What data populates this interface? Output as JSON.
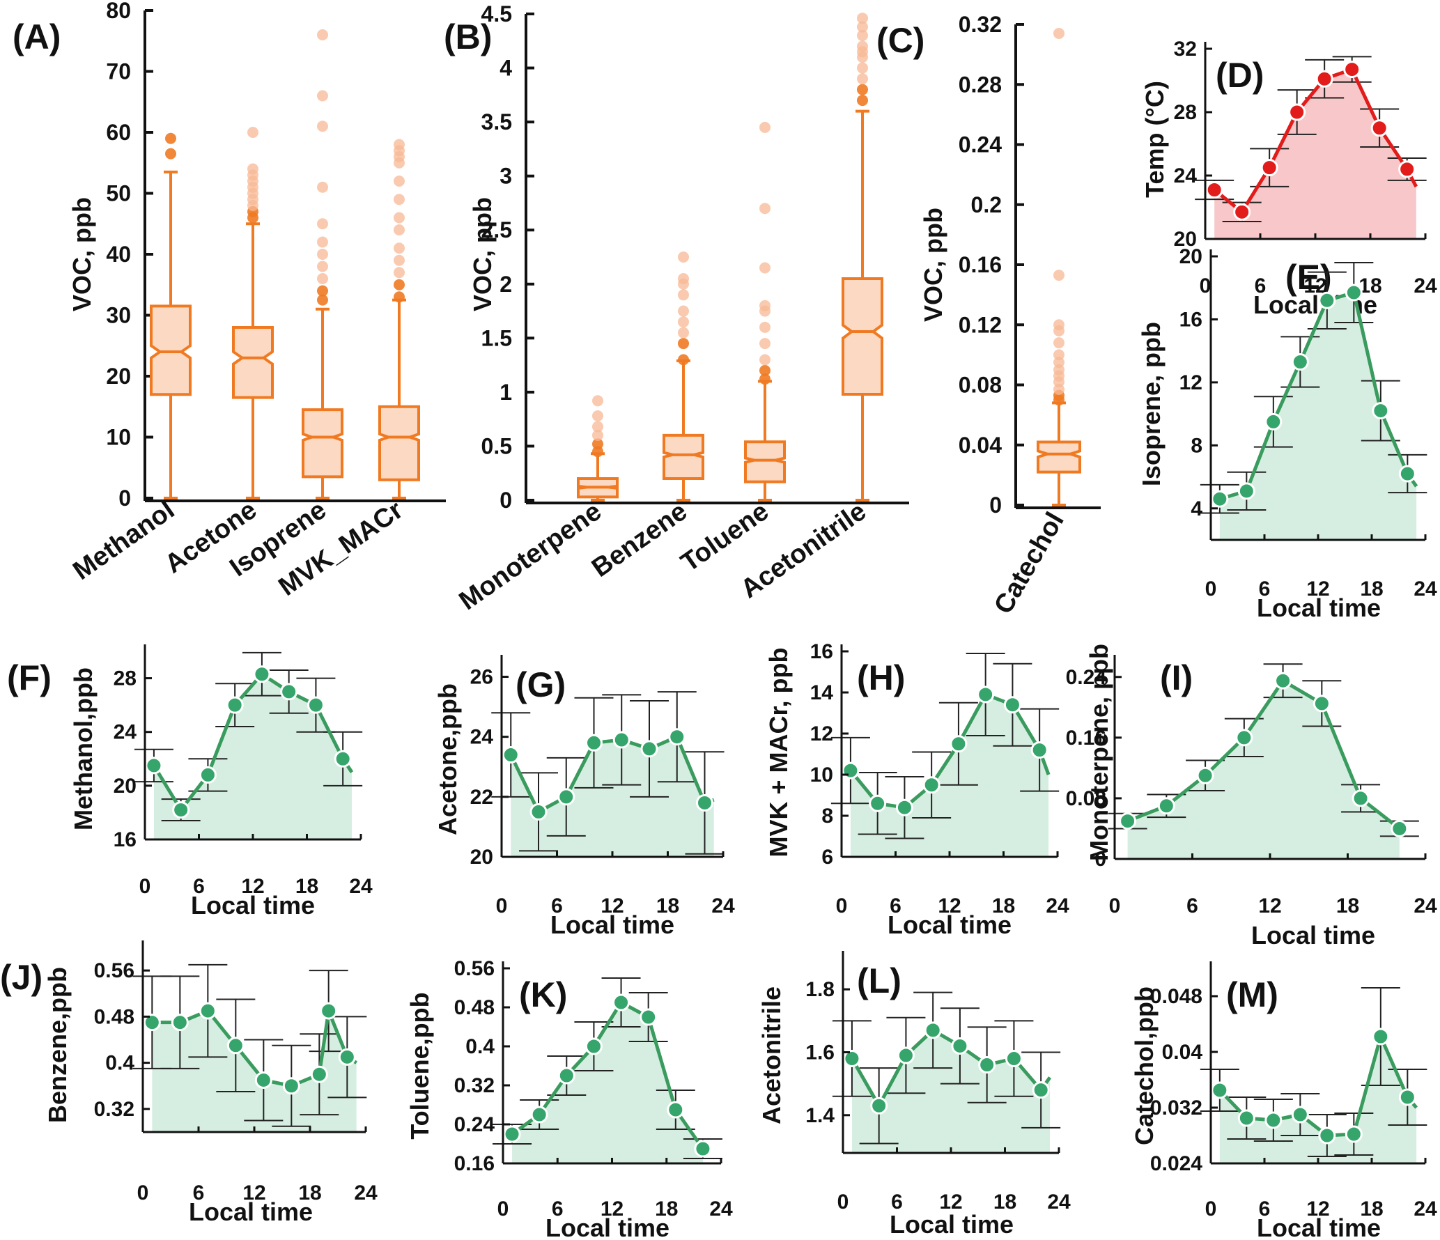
{
  "colors": {
    "box": "#F07A22",
    "box_fill": "#FBD9C2",
    "outlier": "#F7B894",
    "line_green": "#3A9B5E",
    "area_green": "#D6EEE1",
    "marker_green": "#35A56C",
    "line_red": "#E21B1B",
    "area_red": "#F8C7C9",
    "axis": "#111111",
    "errbar": "#222222"
  },
  "chart_data": [
    {
      "id": "A",
      "type": "box",
      "panel_label": "(A)",
      "ylabel": "VOC, ppb",
      "ylim": [
        0,
        80
      ],
      "yticks": [
        0,
        10,
        20,
        30,
        40,
        50,
        60,
        70,
        80
      ],
      "categories": [
        "Methanol",
        "Acetone",
        "Isoprene",
        "MVK_MACr"
      ],
      "boxes": [
        {
          "whisker_low": 0,
          "q1": 17,
          "median": 24,
          "q3": 31.5,
          "whisker_high": 53.5,
          "notch": [
            23,
            25
          ],
          "outliers": [
            56.5,
            59
          ]
        },
        {
          "whisker_low": 0,
          "q1": 16.5,
          "median": 23,
          "q3": 28,
          "whisker_high": 45,
          "notch": [
            22,
            24
          ],
          "outliers": [
            46,
            47,
            48,
            49,
            50,
            51,
            52,
            53,
            54,
            60
          ]
        },
        {
          "whisker_low": 0,
          "q1": 3.5,
          "median": 10,
          "q3": 14.5,
          "whisker_high": 31,
          "notch": [
            9.5,
            10.5
          ],
          "outliers": [
            32.5,
            34,
            36,
            38,
            40,
            42,
            45,
            51,
            61,
            66,
            76
          ]
        },
        {
          "whisker_low": 0,
          "q1": 3,
          "median": 10,
          "q3": 15,
          "whisker_high": 32.5,
          "notch": [
            9.5,
            10.5
          ],
          "outliers": [
            33,
            35,
            37,
            39,
            41,
            44,
            46,
            49,
            52,
            55,
            56,
            57,
            58
          ]
        }
      ]
    },
    {
      "id": "B",
      "type": "box",
      "panel_label": "(B)",
      "ylabel": "VOC, ppb",
      "ylim": [
        0,
        4.5
      ],
      "yticks": [
        0,
        0.5,
        1,
        1.5,
        2,
        2.5,
        3,
        3.5,
        4,
        4.5
      ],
      "ytick_labels": [
        "0",
        "0.5",
        "1",
        "1.5",
        "2",
        "2.5",
        "3",
        "3.5",
        "4",
        "4.5"
      ],
      "categories": [
        "Monoterpene",
        "Benzene",
        "Toluene",
        "Acetonitrile"
      ],
      "boxes": [
        {
          "whisker_low": 0,
          "q1": 0.03,
          "median": 0.12,
          "q3": 0.2,
          "whisker_high": 0.43,
          "notch": [
            0.11,
            0.13
          ],
          "outliers": [
            0.45,
            0.52,
            0.6,
            0.68,
            0.78,
            0.92
          ]
        },
        {
          "whisker_low": 0,
          "q1": 0.2,
          "median": 0.42,
          "q3": 0.6,
          "whisker_high": 1.29,
          "notch": [
            0.4,
            0.44
          ],
          "outliers": [
            1.3,
            1.45,
            1.55,
            1.65,
            1.75,
            1.9,
            2.0,
            2.05,
            2.25
          ]
        },
        {
          "whisker_low": 0,
          "q1": 0.17,
          "median": 0.37,
          "q3": 0.54,
          "whisker_high": 1.1,
          "notch": [
            0.35,
            0.39
          ],
          "outliers": [
            1.12,
            1.2,
            1.3,
            1.45,
            1.6,
            1.75,
            1.8,
            2.15,
            2.7,
            3.45
          ]
        },
        {
          "whisker_low": 0,
          "q1": 0.98,
          "median": 1.56,
          "q3": 2.05,
          "whisker_high": 3.6,
          "notch": [
            1.5,
            1.62
          ],
          "outliers": [
            3.7,
            3.8,
            3.9,
            4.0,
            4.1,
            4.15,
            4.2,
            4.3,
            4.38,
            4.46
          ]
        }
      ]
    },
    {
      "id": "C",
      "type": "box",
      "panel_label": "(C)",
      "ylabel": "VOC, ppb",
      "ylim": [
        0,
        0.32
      ],
      "yticks": [
        0,
        0.04,
        0.08,
        0.12,
        0.16,
        0.2,
        0.24,
        0.28,
        0.32
      ],
      "ytick_labels": [
        "0",
        "0.04",
        "0.08",
        "0.12",
        "0.16",
        "0.2",
        "0.24",
        "0.28",
        "0.32"
      ],
      "categories": [
        "Catechol"
      ],
      "boxes": [
        {
          "whisker_low": 0,
          "q1": 0.022,
          "median": 0.034,
          "q3": 0.042,
          "whisker_high": 0.068,
          "notch": [
            0.032,
            0.036
          ],
          "outliers": [
            0.07,
            0.073,
            0.077,
            0.082,
            0.086,
            0.09,
            0.095,
            0.1,
            0.108,
            0.116,
            0.12,
            0.153,
            0.314
          ]
        }
      ]
    },
    {
      "id": "D",
      "type": "area",
      "panel_label": "(D)",
      "ylabel": "Temp (°C)",
      "xlabel": "Local time",
      "xlim": [
        0,
        24
      ],
      "xticks": [
        0,
        6,
        12,
        18,
        24
      ],
      "ylim": [
        20,
        32
      ],
      "yticks": [
        20,
        24,
        28,
        32
      ],
      "x": [
        1,
        4,
        7,
        10,
        13,
        16,
        19,
        22
      ],
      "y": [
        23.1,
        21.7,
        24.5,
        28.0,
        30.1,
        30.7,
        27.0,
        24.4
      ],
      "err": [
        0.6,
        0.6,
        1.2,
        1.4,
        1.2,
        0.8,
        1.2,
        0.7
      ],
      "line_end": [
        23,
        23.3
      ]
    },
    {
      "id": "E",
      "type": "area",
      "panel_label": "(E)",
      "ylabel": "Isoprene, ppb",
      "xlabel": "Local time",
      "xlim": [
        0,
        24
      ],
      "xticks": [
        0,
        6,
        12,
        18,
        24
      ],
      "ylim": [
        2,
        20
      ],
      "yticks": [
        4,
        8,
        12,
        16,
        20
      ],
      "x": [
        1,
        4,
        7,
        10,
        13,
        16,
        19,
        22
      ],
      "y": [
        4.6,
        5.1,
        9.5,
        13.3,
        17.2,
        17.7,
        10.2,
        6.2
      ],
      "err": [
        0.9,
        1.2,
        1.6,
        1.6,
        1.8,
        1.9,
        1.9,
        1.2
      ],
      "line_end": [
        23,
        5.4
      ]
    },
    {
      "id": "F",
      "type": "area",
      "panel_label": "(F)",
      "ylabel": "Methanol,ppb",
      "xlabel": "Local time",
      "xlim": [
        0,
        24
      ],
      "xticks": [
        0,
        6,
        12,
        18,
        24
      ],
      "ylim": [
        16,
        30
      ],
      "yticks": [
        16,
        20,
        24,
        28
      ],
      "x": [
        1,
        4,
        7,
        10,
        13,
        16,
        19,
        22
      ],
      "y": [
        21.5,
        18.2,
        20.8,
        26.0,
        28.3,
        27.0,
        26.0,
        22.0
      ],
      "err": [
        1.2,
        0.8,
        1.2,
        1.6,
        1.6,
        1.6,
        2.0,
        2.0
      ],
      "line_end": [
        23,
        21.0
      ]
    },
    {
      "id": "G",
      "type": "area",
      "panel_label": "(G)",
      "ylabel": "Acetone,ppb",
      "xlabel": "Local time",
      "xlim": [
        0,
        24
      ],
      "xticks": [
        0,
        6,
        12,
        18,
        24
      ],
      "ylim": [
        20,
        26.5
      ],
      "yticks": [
        20,
        22,
        24,
        26
      ],
      "x": [
        1,
        4,
        7,
        10,
        13,
        16,
        19,
        22
      ],
      "y": [
        23.4,
        21.5,
        22.0,
        23.8,
        23.9,
        23.6,
        24.0,
        21.8
      ],
      "err": [
        1.4,
        1.3,
        1.3,
        1.5,
        1.5,
        1.6,
        1.5,
        1.7
      ],
      "line_end": [
        23,
        21.9
      ]
    },
    {
      "id": "H",
      "type": "area",
      "panel_label": "(H)",
      "ylabel": "MVK + MACr, ppb",
      "xlabel": "Local time",
      "xlim": [
        0,
        24
      ],
      "xticks": [
        0,
        6,
        12,
        18,
        24
      ],
      "ylim": [
        6,
        16
      ],
      "yticks": [
        6,
        8,
        10,
        12,
        14,
        16
      ],
      "x": [
        1,
        4,
        7,
        10,
        13,
        16,
        19,
        22
      ],
      "y": [
        10.2,
        8.6,
        8.4,
        9.5,
        11.5,
        13.9,
        13.4,
        11.2
      ],
      "err": [
        1.6,
        1.5,
        1.5,
        1.6,
        2.0,
        2.0,
        2.0,
        2.0
      ],
      "line_end": [
        23,
        10.0
      ]
    },
    {
      "id": "I",
      "type": "area",
      "panel_label": "(I)",
      "ylabel": "Monoterpene, ppb",
      "xlabel": "Local time",
      "xlim": [
        0,
        24
      ],
      "xticks": [
        0,
        6,
        12,
        18,
        24
      ],
      "ylim": [
        0,
        0.26
      ],
      "yticks": [
        0,
        0.08,
        0.16,
        0.24
      ],
      "ytick_labels": [
        "0",
        "0.08",
        "0.16",
        "0.24"
      ],
      "x": [
        1,
        4,
        7,
        10,
        13,
        16,
        19,
        22
      ],
      "y": [
        0.05,
        0.07,
        0.11,
        0.16,
        0.235,
        0.205,
        0.08,
        0.04
      ],
      "err": [
        0.01,
        0.015,
        0.02,
        0.025,
        0.022,
        0.03,
        0.018,
        0.01
      ],
      "line_end": [
        22,
        0.04
      ]
    },
    {
      "id": "J",
      "type": "area",
      "panel_label": "(J)",
      "ylabel": "Benzene,ppb",
      "xlabel": "Local time",
      "xlim": [
        0,
        24
      ],
      "xticks": [
        0,
        6,
        12,
        18,
        24
      ],
      "ylim": [
        0.28,
        0.6
      ],
      "yticks": [
        0.32,
        0.4,
        0.48,
        0.56
      ],
      "ytick_labels": [
        "0.32",
        "0.4",
        "0.48",
        "0.56"
      ],
      "x": [
        1,
        4,
        7,
        10,
        13,
        16,
        19,
        20,
        22
      ],
      "y": [
        0.47,
        0.47,
        0.49,
        0.43,
        0.37,
        0.36,
        0.38,
        0.49,
        0.41
      ],
      "err": [
        0.08,
        0.08,
        0.08,
        0.08,
        0.07,
        0.07,
        0.07,
        0.07,
        0.07
      ],
      "line_end": [
        23,
        0.4
      ]
    },
    {
      "id": "K",
      "type": "area",
      "panel_label": "(K)",
      "ylabel": "Toluene,ppb",
      "xlabel": "Local time",
      "xlim": [
        0,
        24
      ],
      "xticks": [
        0,
        6,
        12,
        18,
        24
      ],
      "ylim": [
        0.16,
        0.56
      ],
      "yticks": [
        0.16,
        0.24,
        0.32,
        0.4,
        0.48,
        0.56
      ],
      "ytick_labels": [
        "0.16",
        "0.24",
        "0.32",
        "0.4",
        "0.48",
        "0.56"
      ],
      "x": [
        1,
        4,
        7,
        10,
        13,
        16,
        19,
        22
      ],
      "y": [
        0.22,
        0.26,
        0.34,
        0.4,
        0.49,
        0.46,
        0.27,
        0.19
      ],
      "err": [
        0.02,
        0.03,
        0.04,
        0.05,
        0.05,
        0.05,
        0.04,
        0.02
      ],
      "line_end": [
        22,
        0.19
      ]
    },
    {
      "id": "L",
      "type": "area",
      "panel_label": "(L)",
      "ylabel": "Acetonitrile",
      "xlabel": "Local time",
      "xlim": [
        0,
        24
      ],
      "xticks": [
        0,
        6,
        12,
        18,
        24
      ],
      "ylim": [
        1.28,
        1.9
      ],
      "yticks": [
        1.4,
        1.6,
        1.8
      ],
      "ytick_labels": [
        "1.4",
        "1.6",
        "1.8"
      ],
      "x": [
        1,
        4,
        7,
        10,
        13,
        16,
        19,
        22
      ],
      "y": [
        1.58,
        1.43,
        1.59,
        1.67,
        1.62,
        1.56,
        1.58,
        1.48
      ],
      "err": [
        0.12,
        0.12,
        0.12,
        0.12,
        0.12,
        0.12,
        0.12,
        0.12
      ],
      "line_end": [
        23,
        1.52
      ]
    },
    {
      "id": "M",
      "type": "area",
      "panel_label": "(M)",
      "ylabel": "Catechol,ppb",
      "xlabel": "Local time",
      "xlim": [
        0,
        24
      ],
      "xticks": [
        0,
        6,
        12,
        18,
        24
      ],
      "ylim": [
        0.024,
        0.052
      ],
      "yticks": [
        0.024,
        0.032,
        0.04,
        0.048
      ],
      "ytick_labels": [
        "0.024",
        "0.032",
        "0.04",
        "0.048"
      ],
      "x": [
        1,
        4,
        7,
        10,
        13,
        16,
        19,
        22
      ],
      "y": [
        0.0345,
        0.0305,
        0.0302,
        0.031,
        0.028,
        0.0282,
        0.0422,
        0.0335
      ],
      "err": [
        0.003,
        0.003,
        0.003,
        0.003,
        0.003,
        0.003,
        0.007,
        0.004
      ],
      "line_end": [
        23,
        0.032
      ]
    }
  ]
}
